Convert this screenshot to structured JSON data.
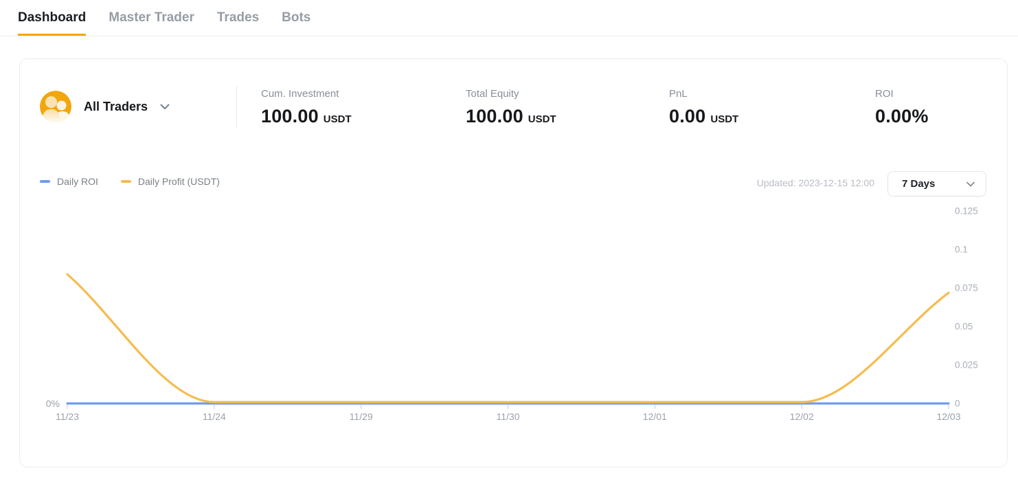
{
  "nav_tabs": {
    "items": [
      {
        "label": "Dashboard",
        "active": true
      },
      {
        "label": "Master Trader",
        "active": false
      },
      {
        "label": "Trades",
        "active": false
      },
      {
        "label": "Bots",
        "active": false
      }
    ],
    "active_underline_color": "#F0A70A"
  },
  "account_summary": {
    "trader_selector": {
      "label": "All Traders",
      "avatar_icon": "traders-group-icon",
      "avatar_color": "#F2A60E"
    },
    "stats": [
      {
        "label": "Cum. Investment",
        "value": "100.00",
        "unit": "USDT"
      },
      {
        "label": "Total Equity",
        "value": "100.00",
        "unit": "USDT"
      },
      {
        "label": "PnL",
        "value": "0.00",
        "unit": "USDT"
      },
      {
        "label": "ROI",
        "value": "0.00%",
        "unit": ""
      }
    ]
  },
  "chart_panel": {
    "updated": "Updated: 2023-12-15 12:00",
    "range_selector": {
      "value": "7 Days"
    }
  },
  "chart_data": {
    "type": "line",
    "title": "",
    "x": [
      "11/23",
      "11/24",
      "11/29",
      "11/30",
      "12/01",
      "12/02",
      "12/03"
    ],
    "series": [
      {
        "name": "Daily ROI",
        "color": "#6D9CF1",
        "axis": "left",
        "values": [
          0,
          0,
          0,
          0,
          0,
          0,
          0
        ]
      },
      {
        "name": "Daily Profit (USDT)",
        "color": "#F6BC4E",
        "axis": "right",
        "values": [
          0.083,
          0,
          0,
          0,
          0,
          0,
          0.071
        ]
      }
    ],
    "left_axis_labels": [
      "0%"
    ],
    "right_axis_ticks": [
      "0",
      "0.025",
      "0.05",
      "0.075",
      "0.1",
      "0.125"
    ],
    "right_axis_range": [
      0,
      0.125
    ],
    "legend_position": "top-left",
    "grid": false
  }
}
